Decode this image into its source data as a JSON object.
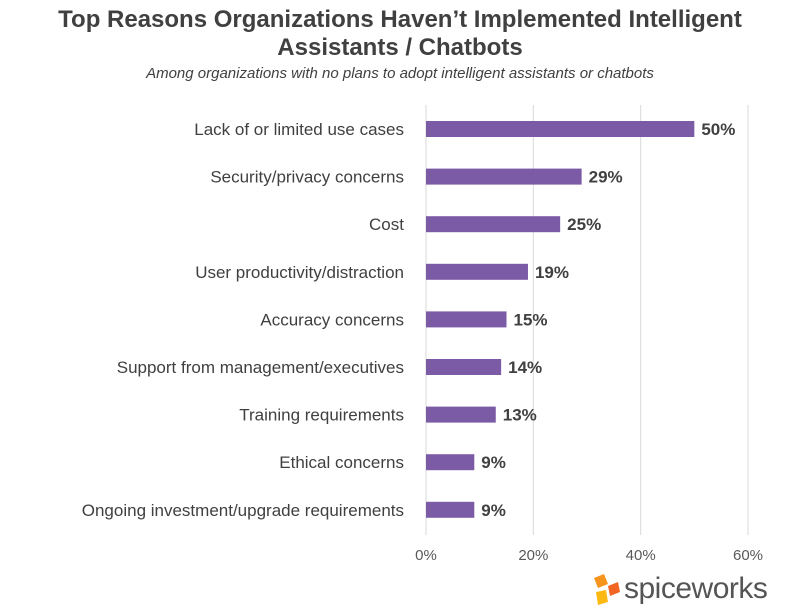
{
  "chart_data": {
    "type": "bar",
    "orientation": "horizontal",
    "title": "Top Reasons Organizations Haven’t Implemented Intelligent Assistants / Chatbots",
    "subtitle": "Among organizations with no plans to adopt intelligent assistants or chatbots",
    "categories": [
      "Lack of or limited use cases",
      "Security/privacy concerns",
      "Cost",
      "User productivity/distraction",
      "Accuracy concerns",
      "Support from management/executives",
      "Training requirements",
      "Ethical concerns",
      "Ongoing investment/upgrade requirements"
    ],
    "values": [
      50,
      29,
      25,
      19,
      15,
      14,
      13,
      9,
      9
    ],
    "value_labels": [
      "50%",
      "29%",
      "25%",
      "19%",
      "15%",
      "14%",
      "13%",
      "9%",
      "9%"
    ],
    "xlim": [
      0,
      60
    ],
    "x_ticks": [
      0,
      20,
      40,
      60
    ],
    "x_tick_labels": [
      "0%",
      "20%",
      "40%",
      "60%"
    ],
    "grid": true,
    "bar_color": "#7B5BA6"
  },
  "brand": {
    "logo_text": "spiceworks",
    "logo_colors": [
      "#F7941D",
      "#F26522",
      "#FDB913"
    ]
  }
}
